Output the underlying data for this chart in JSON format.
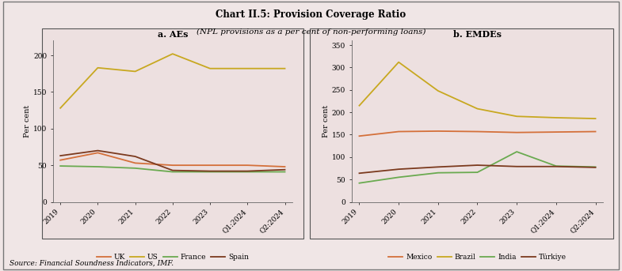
{
  "title": "Chart II.5: Provision Coverage Ratio",
  "subtitle": "(NPL provisions as a per cent of non-performing loans)",
  "source": "Source: Financial Soundness Indicators, IMF.",
  "fig_background": "#f0e6e6",
  "panel_background": "#ede0e0",
  "x_labels": [
    "2019",
    "2020",
    "2021",
    "2022",
    "2023",
    "Q1:2024",
    "Q2:2024"
  ],
  "panel_a": {
    "title": "a. AEs",
    "ylabel": "Per cent",
    "ylim": [
      0,
      220
    ],
    "yticks": [
      0,
      50,
      100,
      150,
      200
    ],
    "series": {
      "UK": {
        "color": "#d4703a",
        "values": [
          57,
          67,
          53,
          50,
          50,
          50,
          48
        ]
      },
      "US": {
        "color": "#c8a820",
        "values": [
          128,
          183,
          178,
          202,
          182,
          182,
          182
        ]
      },
      "France": {
        "color": "#6aaa50",
        "values": [
          49,
          48,
          46,
          41,
          41,
          41,
          41
        ]
      },
      "Spain": {
        "color": "#7b3a1e",
        "values": [
          63,
          70,
          62,
          43,
          42,
          42,
          44
        ]
      }
    }
  },
  "panel_b": {
    "title": "b. EMDEs",
    "ylabel": "Per cent",
    "ylim": [
      0,
      360
    ],
    "yticks": [
      0,
      50,
      100,
      150,
      200,
      250,
      300,
      350
    ],
    "series": {
      "Mexico": {
        "color": "#d4703a",
        "values": [
          147,
          157,
          158,
          157,
          155,
          156,
          157
        ]
      },
      "Brazil": {
        "color": "#c8a820",
        "values": [
          215,
          312,
          248,
          208,
          191,
          188,
          186
        ]
      },
      "India": {
        "color": "#6aaa50",
        "values": [
          42,
          55,
          65,
          66,
          112,
          80,
          78
        ]
      },
      "Turkiye": {
        "color": "#7b3a1e",
        "values": [
          64,
          73,
          78,
          82,
          79,
          79,
          77
        ]
      }
    },
    "series_labels": [
      "Mexico",
      "Brazil",
      "India",
      "Türkiye"
    ]
  }
}
